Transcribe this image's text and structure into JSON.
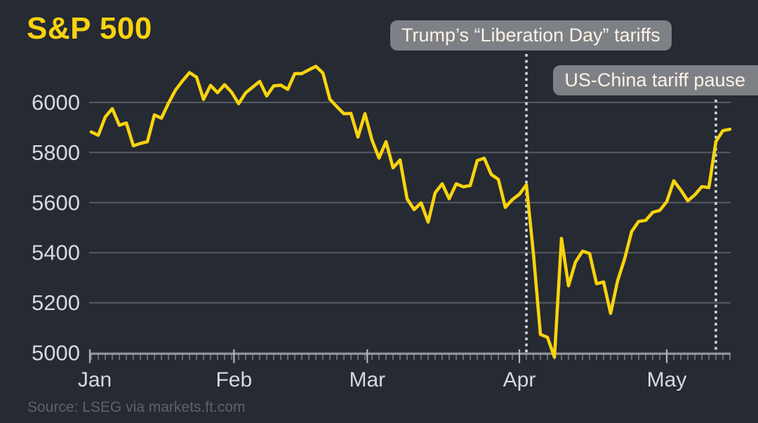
{
  "header": {
    "title": "S&P 500",
    "title_color": "#f8d30e"
  },
  "source_line": "Source: LSEG via markets.ft.com",
  "annotations": [
    {
      "id": "liberation-day-tariffs",
      "label": "Trump’s “Liberation Day” tariffs",
      "date": "2025-04-02"
    },
    {
      "id": "us-china-tariff-pause",
      "label": "US-China tariff pause",
      "date": "2025-05-12"
    }
  ],
  "chart_data": {
    "type": "line",
    "title": "S&P 500",
    "xlabel": "",
    "ylabel": "",
    "legend": "none",
    "grid": "horizontal",
    "x_axis": {
      "tick_labels": [
        "Jan",
        "Feb",
        "Mar",
        "Apr",
        "May"
      ],
      "tick_dates": [
        "2025-01-01",
        "2025-02-01",
        "2025-03-01",
        "2025-04-01",
        "2025-05-01"
      ]
    },
    "y_axis": {
      "ticks": [
        6000,
        5800,
        5600,
        5400,
        5200,
        5000
      ],
      "range": [
        4950,
        6190
      ]
    },
    "series": [
      {
        "name": "S&P 500 index level",
        "points": [
          [
            "2024-12-31",
            5882
          ],
          [
            "2025-01-02",
            5869
          ],
          [
            "2025-01-03",
            5942
          ],
          [
            "2025-01-06",
            5975
          ],
          [
            "2025-01-07",
            5909
          ],
          [
            "2025-01-08",
            5918
          ],
          [
            "2025-01-10",
            5827
          ],
          [
            "2025-01-13",
            5836
          ],
          [
            "2025-01-14",
            5843
          ],
          [
            "2025-01-15",
            5950
          ],
          [
            "2025-01-16",
            5937
          ],
          [
            "2025-01-17",
            5997
          ],
          [
            "2025-01-21",
            6049
          ],
          [
            "2025-01-22",
            6086
          ],
          [
            "2025-01-23",
            6119
          ],
          [
            "2025-01-24",
            6101
          ],
          [
            "2025-01-27",
            6012
          ],
          [
            "2025-01-28",
            6068
          ],
          [
            "2025-01-29",
            6039
          ],
          [
            "2025-01-30",
            6071
          ],
          [
            "2025-01-31",
            6041
          ],
          [
            "2025-02-03",
            5995
          ],
          [
            "2025-02-04",
            6038
          ],
          [
            "2025-02-05",
            6061
          ],
          [
            "2025-02-06",
            6084
          ],
          [
            "2025-02-07",
            6026
          ],
          [
            "2025-02-10",
            6066
          ],
          [
            "2025-02-11",
            6069
          ],
          [
            "2025-02-12",
            6052
          ],
          [
            "2025-02-13",
            6115
          ],
          [
            "2025-02-14",
            6115
          ],
          [
            "2025-02-18",
            6130
          ],
          [
            "2025-02-19",
            6144
          ],
          [
            "2025-02-20",
            6118
          ],
          [
            "2025-02-21",
            6013
          ],
          [
            "2025-02-24",
            5983
          ],
          [
            "2025-02-25",
            5955
          ],
          [
            "2025-02-26",
            5956
          ],
          [
            "2025-02-27",
            5862
          ],
          [
            "2025-02-28",
            5955
          ],
          [
            "2025-03-03",
            5850
          ],
          [
            "2025-03-04",
            5778
          ],
          [
            "2025-03-05",
            5843
          ],
          [
            "2025-03-06",
            5739
          ],
          [
            "2025-03-07",
            5770
          ],
          [
            "2025-03-10",
            5615
          ],
          [
            "2025-03-11",
            5572
          ],
          [
            "2025-03-12",
            5599
          ],
          [
            "2025-03-13",
            5522
          ],
          [
            "2025-03-14",
            5639
          ],
          [
            "2025-03-17",
            5675
          ],
          [
            "2025-03-18",
            5615
          ],
          [
            "2025-03-19",
            5675
          ],
          [
            "2025-03-20",
            5663
          ],
          [
            "2025-03-21",
            5668
          ],
          [
            "2025-03-24",
            5768
          ],
          [
            "2025-03-25",
            5777
          ],
          [
            "2025-03-26",
            5712
          ],
          [
            "2025-03-27",
            5693
          ],
          [
            "2025-03-28",
            5581
          ],
          [
            "2025-03-31",
            5612
          ],
          [
            "2025-04-01",
            5633
          ],
          [
            "2025-04-02",
            5671
          ],
          [
            "2025-04-03",
            5397
          ],
          [
            "2025-04-04",
            5074
          ],
          [
            "2025-04-07",
            5062
          ],
          [
            "2025-04-08",
            4983
          ],
          [
            "2025-04-09",
            5457
          ],
          [
            "2025-04-10",
            5268
          ],
          [
            "2025-04-11",
            5363
          ],
          [
            "2025-04-14",
            5406
          ],
          [
            "2025-04-15",
            5397
          ],
          [
            "2025-04-16",
            5276
          ],
          [
            "2025-04-17",
            5283
          ],
          [
            "2025-04-21",
            5158
          ],
          [
            "2025-04-22",
            5288
          ],
          [
            "2025-04-23",
            5376
          ],
          [
            "2025-04-24",
            5485
          ],
          [
            "2025-04-25",
            5525
          ],
          [
            "2025-04-28",
            5529
          ],
          [
            "2025-04-29",
            5561
          ],
          [
            "2025-04-30",
            5569
          ],
          [
            "2025-05-01",
            5604
          ],
          [
            "2025-05-02",
            5687
          ],
          [
            "2025-05-05",
            5650
          ],
          [
            "2025-05-06",
            5607
          ],
          [
            "2025-05-07",
            5631
          ],
          [
            "2025-05-08",
            5664
          ],
          [
            "2025-05-09",
            5660
          ],
          [
            "2025-05-12",
            5844
          ],
          [
            "2025-05-13",
            5887
          ],
          [
            "2025-05-14",
            5893
          ]
        ]
      }
    ],
    "colors": {
      "background": "#262a33",
      "line": "#f8d30e",
      "grid": "#565b63",
      "axis_line": "#9a9da2",
      "axis_tick_major": "#b4b7bb",
      "axis_text": "#d7d9db",
      "dotted_line": "#d4d6d8",
      "annotation_bg": "#7d8186",
      "annotation_text": "#fff1e5",
      "source_text": "#5d626b"
    }
  }
}
